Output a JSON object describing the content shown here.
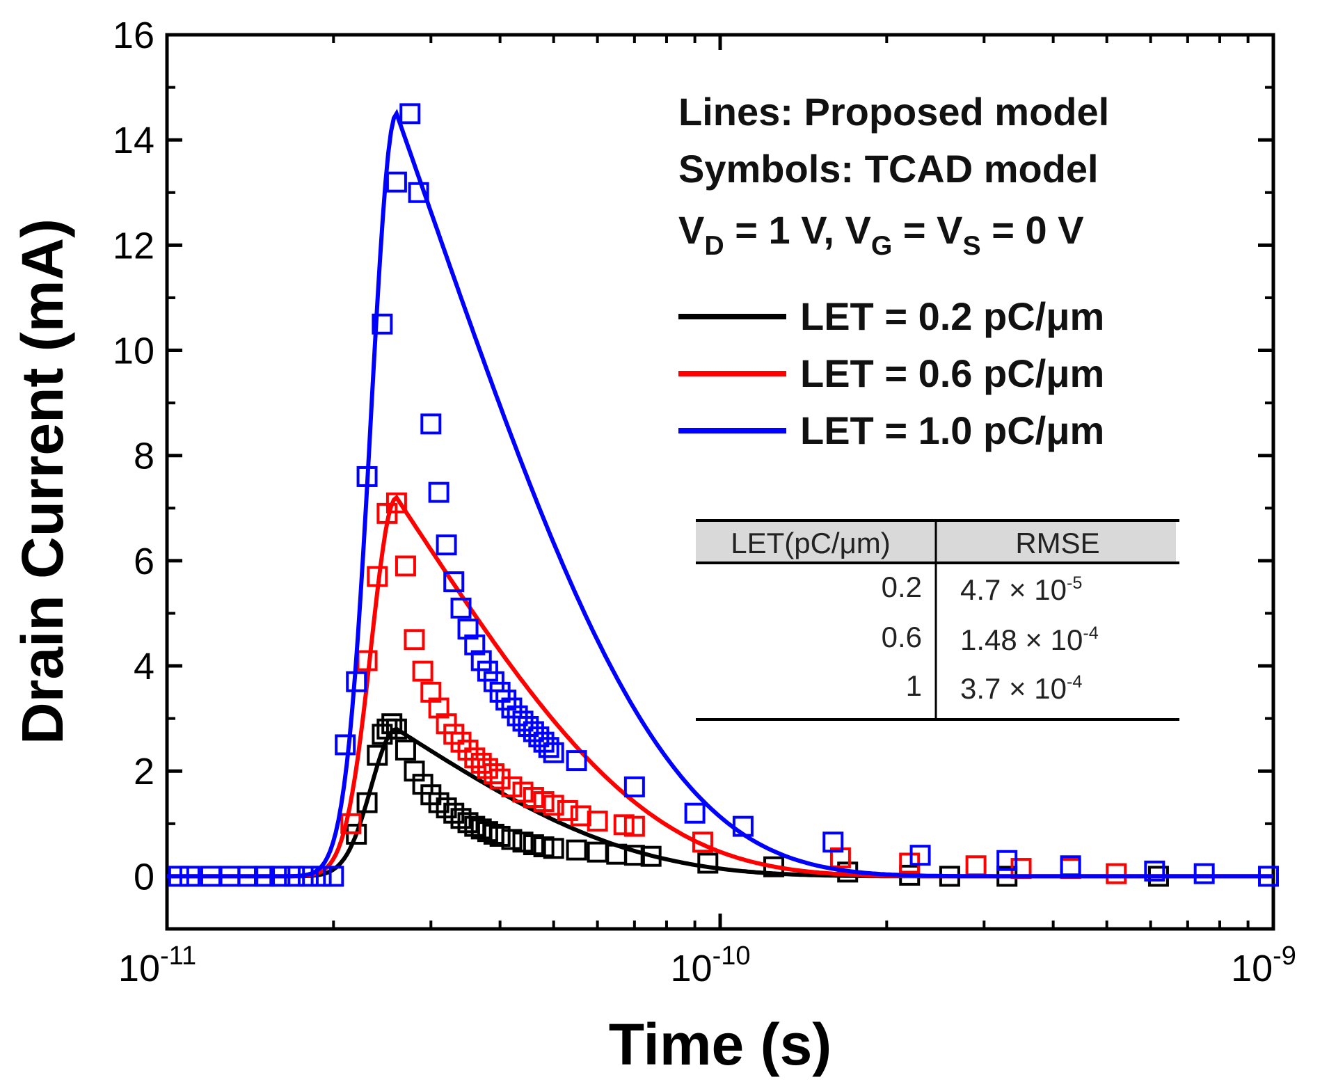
{
  "chart_data": {
    "type": "line",
    "title": "",
    "xlabel": "Time (s)",
    "ylabel": "Drain Current (mA)",
    "xscale": "log",
    "xlim": [
      1e-11,
      1e-09
    ],
    "ylim": [
      -1,
      16
    ],
    "x_ticks": [
      {
        "value": 1e-11,
        "base": "10",
        "exp": "-11"
      },
      {
        "value": 1e-10,
        "base": "10",
        "exp": "-10"
      },
      {
        "value": 1e-09,
        "base": "10",
        "exp": "-9"
      }
    ],
    "y_ticks": [
      0,
      2,
      4,
      6,
      8,
      10,
      12,
      14,
      16
    ],
    "annotations": {
      "line1": "Lines: Proposed model",
      "line2": "Symbols: TCAD model",
      "bias": {
        "v1": "V",
        "s1": "D",
        "t1": " = 1 V, V",
        "s2": "G",
        "t2": " = V",
        "s3": "S",
        "t3": " = 0 V"
      }
    },
    "series": [
      {
        "name": "LET = 0.2 pC/μm",
        "color": "#000000",
        "peak": 2.8,
        "tau": 2.5e-11,
        "tcad_x": [
          2.2e-11,
          2.3e-11,
          2.4e-11,
          2.45e-11,
          2.5e-11,
          2.55e-11,
          2.6e-11,
          2.7e-11,
          2.8e-11,
          2.9e-11,
          3e-11,
          3.1e-11,
          3.2e-11,
          3.3e-11,
          3.4e-11,
          3.5e-11,
          3.6e-11,
          3.7e-11,
          3.8e-11,
          3.9e-11,
          4e-11,
          4.2e-11,
          4.4e-11,
          4.6e-11,
          4.8e-11,
          5e-11,
          5.5e-11,
          6e-11,
          6.5e-11,
          7e-11,
          7.5e-11,
          9.5e-11,
          1.25e-10,
          1.7e-10,
          2.2e-10,
          2.6e-10,
          3.3e-10,
          6.2e-10
        ],
        "tcad_y": [
          0.8,
          1.4,
          2.3,
          2.7,
          2.8,
          2.9,
          2.8,
          2.4,
          2.0,
          1.75,
          1.55,
          1.4,
          1.3,
          1.2,
          1.1,
          1.02,
          0.95,
          0.9,
          0.85,
          0.8,
          0.76,
          0.7,
          0.65,
          0.6,
          0.56,
          0.53,
          0.5,
          0.46,
          0.42,
          0.4,
          0.38,
          0.25,
          0.18,
          0.08,
          0.02,
          0.0,
          0.0,
          0.0
        ]
      },
      {
        "name": "LET = 0.6 pC/μm",
        "color": "#ff0000",
        "peak": 7.2,
        "tau": 2.7e-11,
        "tcad_x": [
          2.15e-11,
          2.3e-11,
          2.4e-11,
          2.5e-11,
          2.6e-11,
          2.7e-11,
          2.8e-11,
          2.9e-11,
          3e-11,
          3.1e-11,
          3.2e-11,
          3.3e-11,
          3.4e-11,
          3.5e-11,
          3.6e-11,
          3.7e-11,
          3.8e-11,
          3.9e-11,
          4e-11,
          4.2e-11,
          4.4e-11,
          4.6e-11,
          4.8e-11,
          5e-11,
          5.3e-11,
          5.6e-11,
          6e-11,
          6.7e-11,
          7e-11,
          9.3e-11,
          1.65e-10,
          2.2e-10,
          2.9e-10,
          3.5e-10,
          4.3e-10,
          5.2e-10
        ],
        "tcad_y": [
          1.0,
          4.1,
          5.7,
          6.9,
          7.1,
          5.9,
          4.5,
          3.9,
          3.5,
          3.2,
          2.9,
          2.7,
          2.55,
          2.4,
          2.25,
          2.15,
          2.05,
          1.95,
          1.85,
          1.7,
          1.6,
          1.5,
          1.42,
          1.35,
          1.25,
          1.15,
          1.05,
          0.98,
          0.95,
          0.65,
          0.35,
          0.25,
          0.2,
          0.15,
          0.15,
          0.05
        ]
      },
      {
        "name": "LET = 1.0 pC/μm",
        "color": "#0000ff",
        "peak": 14.5,
        "tau": 2.9e-11,
        "tcad_x": [
          1.05e-11,
          1.1e-11,
          1.2e-11,
          1.3e-11,
          1.4e-11,
          1.5e-11,
          1.6e-11,
          1.7e-11,
          1.8e-11,
          1.9e-11,
          2e-11,
          2.1e-11,
          2.2e-11,
          2.3e-11,
          2.45e-11,
          2.6e-11,
          2.75e-11,
          2.85e-11,
          3e-11,
          3.1e-11,
          3.2e-11,
          3.3e-11,
          3.4e-11,
          3.5e-11,
          3.6e-11,
          3.7e-11,
          3.8e-11,
          3.9e-11,
          4e-11,
          4.1e-11,
          4.2e-11,
          4.3e-11,
          4.4e-11,
          4.5e-11,
          4.6e-11,
          4.7e-11,
          4.8e-11,
          4.9e-11,
          5e-11,
          5.5e-11,
          7e-11,
          9e-11,
          1.1e-10,
          1.6e-10,
          2.3e-10,
          3.3e-10,
          4.3e-10,
          6.1e-10,
          7.5e-10,
          9.8e-10
        ],
        "tcad_y": [
          0.0,
          0.0,
          0.0,
          0.0,
          0.0,
          0.0,
          0.0,
          0.0,
          0.0,
          0.0,
          0.0,
          2.5,
          3.7,
          7.6,
          10.5,
          13.2,
          14.5,
          13.0,
          8.6,
          7.3,
          6.3,
          5.6,
          5.1,
          4.7,
          4.4,
          4.1,
          3.9,
          3.7,
          3.5,
          3.35,
          3.2,
          3.05,
          2.95,
          2.85,
          2.75,
          2.65,
          2.55,
          2.45,
          2.35,
          2.2,
          1.7,
          1.2,
          0.95,
          0.65,
          0.4,
          0.3,
          0.2,
          0.1,
          0.05,
          0.0
        ]
      }
    ],
    "table": {
      "headers": [
        "LET(pC/μm)",
        "RMSE"
      ],
      "rows": [
        {
          "let": "0.2",
          "mant": "4.7 × 10",
          "exp": "-5"
        },
        {
          "let": "0.6",
          "mant": "1.48 × 10",
          "exp": "-4"
        },
        {
          "let": "1",
          "mant": "3.7 × 10",
          "exp": "-4"
        }
      ]
    }
  }
}
